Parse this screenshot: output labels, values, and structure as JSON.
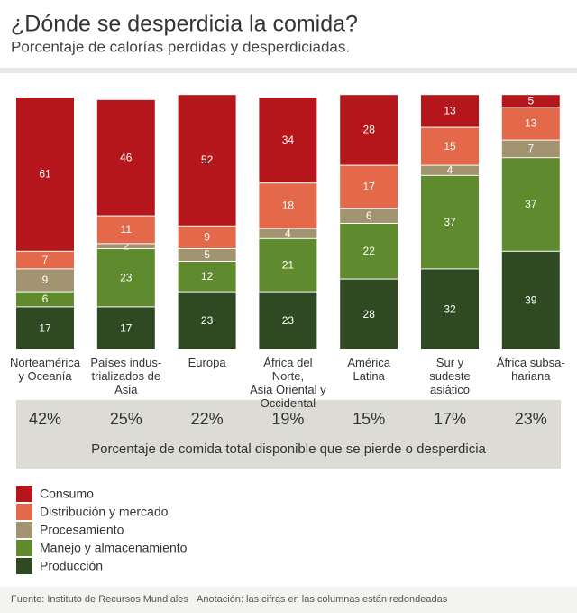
{
  "chart_data": {
    "type": "stacked_bar",
    "title": "¿Dónde se desperdicia la comida?",
    "subtitle": "Porcentaje de calorías perdidas y desperdiciadas.",
    "categories": [
      "Norteamérica\ny Oceanía",
      "Países indus-\ntrializados de\nAsia",
      "Europa",
      "África del Norte,\nAsia Oriental y\nOccidental",
      "América\nLatina",
      "Sur y\nsudeste\nasiático",
      "África subsa-\nhariana"
    ],
    "ylim": [
      0,
      100
    ],
    "series": [
      {
        "name": "Producción",
        "color": "#2f4a23",
        "values": [
          17,
          17,
          23,
          23,
          28,
          32,
          39
        ]
      },
      {
        "name": "Manejo y almacenamiento",
        "color": "#5f8a2e",
        "values": [
          6,
          23,
          12,
          21,
          22,
          37,
          37
        ]
      },
      {
        "name": "Procesamiento",
        "color": "#a39471",
        "values": [
          9,
          2,
          5,
          4,
          6,
          4,
          7
        ]
      },
      {
        "name": "Distribución y mercado",
        "color": "#e4694a",
        "values": [
          7,
          11,
          9,
          18,
          17,
          15,
          13
        ]
      },
      {
        "name": "Consumo",
        "color": "#b5161b",
        "values": [
          61,
          46,
          52,
          34,
          28,
          13,
          5
        ]
      }
    ],
    "loss_share_labels": [
      "42%",
      "25%",
      "22%",
      "19%",
      "15%",
      "17%",
      "23%"
    ],
    "loss_share_caption": "Porcentaje de comida total disponible que se pierde o desperdicia",
    "source": "Fuente: Instituto de Recursos Mundiales",
    "note": "Anotación: las cifras en las columnas están redondeadas"
  }
}
